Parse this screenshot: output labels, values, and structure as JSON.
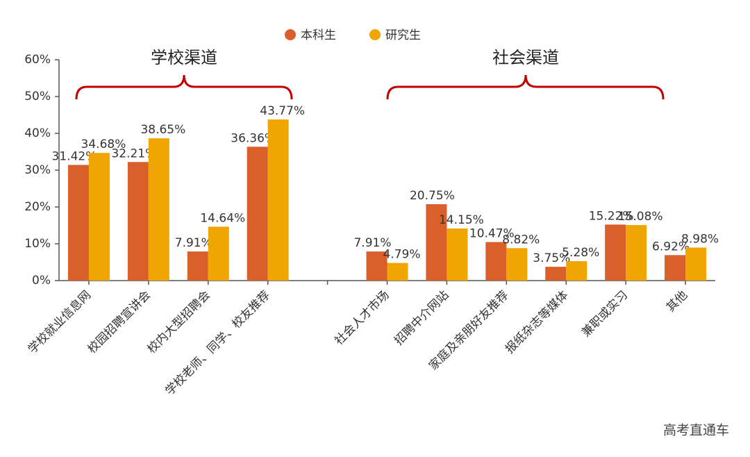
{
  "chart_data": {
    "type": "bar",
    "categories": [
      "学校就业信息网",
      "校园招聘宣讲会",
      "校内大型招聘会",
      "学校老师、同学、校友推荐",
      null,
      "社会人才市场",
      "招聘中介网站",
      "家庭及亲朋好友推荐",
      "报纸杂志等媒体",
      "兼职或实习",
      "其他"
    ],
    "series": [
      {
        "name": "本科生",
        "color": "#d95f2b",
        "values": [
          31.42,
          32.21,
          7.91,
          36.36,
          null,
          7.91,
          20.75,
          10.47,
          3.75,
          15.22,
          6.92
        ],
        "value_labels": [
          "31.42%",
          "32.21%",
          "7.91%",
          "36.36%",
          null,
          "7.91%",
          "20.75%",
          "10.47%",
          "3.75%",
          "15.22%",
          "6.92%"
        ]
      },
      {
        "name": "研究生",
        "color": "#f0a500",
        "values": [
          34.68,
          38.65,
          14.64,
          43.77,
          null,
          4.79,
          14.15,
          8.82,
          5.28,
          15.08,
          8.98
        ],
        "value_labels": [
          "34.68%",
          "38.65%",
          "14.64%",
          "43.77%",
          null,
          "4.79%",
          "14.15%",
          "8.82%",
          "5.28%",
          "15.08%",
          "8.98%"
        ]
      }
    ],
    "ylim": [
      0,
      60
    ],
    "yticks": [
      {
        "value": 0,
        "label": "0%"
      },
      {
        "value": 10,
        "label": "10%"
      },
      {
        "value": 20,
        "label": "20%"
      },
      {
        "value": 30,
        "label": "30%"
      },
      {
        "value": 40,
        "label": "40%"
      },
      {
        "value": 50,
        "label": "50%"
      },
      {
        "value": 60,
        "label": "60%"
      }
    ],
    "annotations": [
      "学校渠道",
      "社会渠道"
    ],
    "legend": "top"
  },
  "watermark": "高考直通车"
}
